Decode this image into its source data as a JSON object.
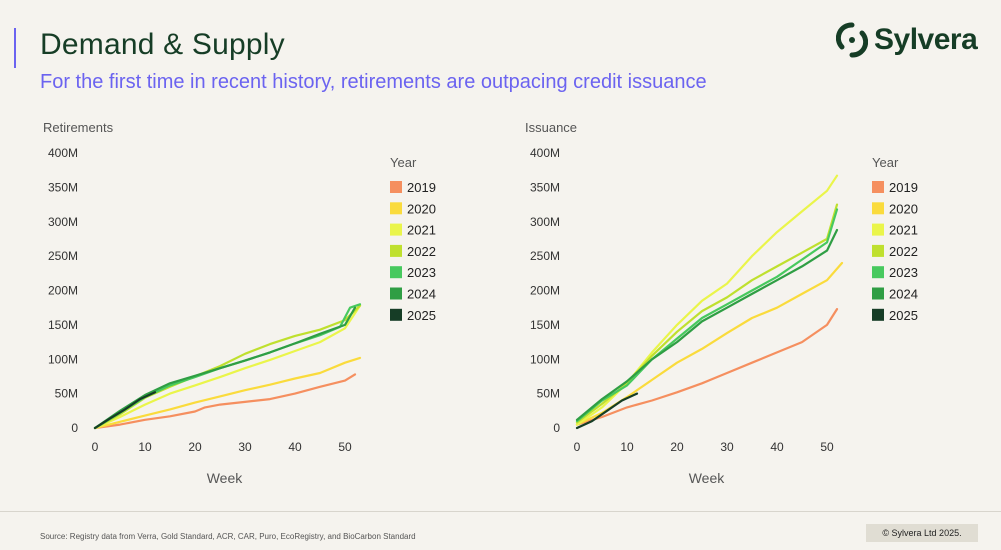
{
  "title": "Demand & Supply",
  "subtitle": "For the first time in recent history, retirements are outpacing credit issuance",
  "brand": {
    "name": "Sylvera",
    "color": "#163d26",
    "accent": "#6b63f0",
    "logo_icon": "sylvera-logo-icon"
  },
  "footer": {
    "source": "Source: Registry data from Verra, Gold Standard, ACR, CAR, Puro, EcoRegistry, and BioCarbon Standard",
    "copyright": "© Sylvera Ltd 2025."
  },
  "chart_data": [
    {
      "type": "line",
      "title": "",
      "ylabel": "Retirements",
      "xlabel": "Week",
      "xlim": [
        0,
        53
      ],
      "ylim": [
        0,
        400
      ],
      "x_ticks": [
        0,
        10,
        20,
        30,
        40,
        50
      ],
      "y_ticks": [
        "0",
        "50M",
        "100M",
        "150M",
        "200M",
        "250M",
        "300M",
        "350M",
        "400M"
      ],
      "y_tick_values": [
        0,
        50,
        100,
        150,
        200,
        250,
        300,
        350,
        400
      ],
      "grid": false,
      "legend": {
        "title": "Year",
        "position": "right"
      },
      "series": [
        {
          "name": "2019",
          "color": "#f58f5f",
          "points": [
            [
              0,
              0
            ],
            [
              5,
              5
            ],
            [
              10,
              12
            ],
            [
              15,
              17
            ],
            [
              20,
              24
            ],
            [
              22,
              30
            ],
            [
              25,
              34
            ],
            [
              30,
              38
            ],
            [
              35,
              42
            ],
            [
              40,
              50
            ],
            [
              45,
              60
            ],
            [
              50,
              69
            ],
            [
              52,
              78
            ]
          ]
        },
        {
          "name": "2020",
          "color": "#fadb3c",
          "points": [
            [
              0,
              0
            ],
            [
              5,
              9
            ],
            [
              10,
              18
            ],
            [
              15,
              27
            ],
            [
              20,
              37
            ],
            [
              25,
              46
            ],
            [
              30,
              55
            ],
            [
              35,
              63
            ],
            [
              40,
              72
            ],
            [
              45,
              80
            ],
            [
              50,
              95
            ],
            [
              53,
              102
            ]
          ]
        },
        {
          "name": "2021",
          "color": "#eaf54a",
          "points": [
            [
              0,
              0
            ],
            [
              5,
              16
            ],
            [
              10,
              34
            ],
            [
              15,
              50
            ],
            [
              20,
              62
            ],
            [
              25,
              74
            ],
            [
              30,
              87
            ],
            [
              35,
              99
            ],
            [
              40,
              112
            ],
            [
              45,
              125
            ],
            [
              50,
              145
            ],
            [
              53,
              178
            ]
          ]
        },
        {
          "name": "2022",
          "color": "#bfe02e",
          "points": [
            [
              0,
              0
            ],
            [
              5,
              20
            ],
            [
              10,
              44
            ],
            [
              15,
              60
            ],
            [
              20,
              75
            ],
            [
              25,
              90
            ],
            [
              30,
              108
            ],
            [
              35,
              122
            ],
            [
              40,
              134
            ],
            [
              45,
              143
            ],
            [
              50,
              157
            ],
            [
              53,
              178
            ]
          ]
        },
        {
          "name": "2023",
          "color": "#47c95e",
          "points": [
            [
              0,
              0
            ],
            [
              5,
              22
            ],
            [
              10,
              45
            ],
            [
              15,
              62
            ],
            [
              20,
              74
            ],
            [
              25,
              87
            ],
            [
              30,
              98
            ],
            [
              35,
              110
            ],
            [
              40,
              123
            ],
            [
              45,
              135
            ],
            [
              49,
              147
            ],
            [
              51,
              175
            ],
            [
              53,
              180
            ]
          ]
        },
        {
          "name": "2024",
          "color": "#2f9e44",
          "points": [
            [
              0,
              0
            ],
            [
              5,
              25
            ],
            [
              10,
              48
            ],
            [
              15,
              65
            ],
            [
              20,
              76
            ],
            [
              25,
              87
            ],
            [
              30,
              98
            ],
            [
              35,
              110
            ],
            [
              40,
              123
            ],
            [
              45,
              137
            ],
            [
              50,
              150
            ],
            [
              52,
              175
            ]
          ]
        },
        {
          "name": "2025",
          "color": "#163d26",
          "points": [
            [
              0,
              0
            ],
            [
              3,
              14
            ],
            [
              6,
              27
            ],
            [
              9,
              42
            ],
            [
              12,
              52
            ]
          ]
        }
      ]
    },
    {
      "type": "line",
      "title": "",
      "ylabel": "Issuance",
      "xlabel": "Week",
      "xlim": [
        0,
        53
      ],
      "ylim": [
        0,
        400
      ],
      "x_ticks": [
        0,
        10,
        20,
        30,
        40,
        50
      ],
      "y_ticks": [
        "0",
        "50M",
        "100M",
        "150M",
        "200M",
        "250M",
        "300M",
        "350M",
        "400M"
      ],
      "y_tick_values": [
        0,
        50,
        100,
        150,
        200,
        250,
        300,
        350,
        400
      ],
      "grid": false,
      "legend": {
        "title": "Year",
        "position": "right"
      },
      "series": [
        {
          "name": "2019",
          "color": "#f58f5f",
          "points": [
            [
              0,
              5
            ],
            [
              5,
              16
            ],
            [
              10,
              30
            ],
            [
              15,
              40
            ],
            [
              20,
              52
            ],
            [
              25,
              65
            ],
            [
              30,
              80
            ],
            [
              35,
              95
            ],
            [
              40,
              110
            ],
            [
              45,
              125
            ],
            [
              50,
              150
            ],
            [
              52,
              173
            ]
          ]
        },
        {
          "name": "2020",
          "color": "#fadb3c",
          "points": [
            [
              0,
              5
            ],
            [
              5,
              22
            ],
            [
              10,
              45
            ],
            [
              15,
              70
            ],
            [
              20,
              95
            ],
            [
              25,
              115
            ],
            [
              30,
              138
            ],
            [
              35,
              160
            ],
            [
              40,
              175
            ],
            [
              45,
              195
            ],
            [
              50,
              215
            ],
            [
              53,
              240
            ]
          ]
        },
        {
          "name": "2021",
          "color": "#eaf54a",
          "points": [
            [
              0,
              5
            ],
            [
              5,
              30
            ],
            [
              10,
              65
            ],
            [
              15,
              110
            ],
            [
              20,
              150
            ],
            [
              25,
              185
            ],
            [
              30,
              210
            ],
            [
              35,
              250
            ],
            [
              40,
              285
            ],
            [
              45,
              315
            ],
            [
              50,
              345
            ],
            [
              52,
              367
            ]
          ]
        },
        {
          "name": "2022",
          "color": "#bfe02e",
          "points": [
            [
              0,
              8
            ],
            [
              5,
              35
            ],
            [
              10,
              65
            ],
            [
              15,
              105
            ],
            [
              20,
              140
            ],
            [
              25,
              170
            ],
            [
              30,
              190
            ],
            [
              35,
              215
            ],
            [
              40,
              235
            ],
            [
              45,
              255
            ],
            [
              50,
              275
            ],
            [
              52,
              325
            ]
          ]
        },
        {
          "name": "2023",
          "color": "#47c95e",
          "points": [
            [
              0,
              10
            ],
            [
              5,
              40
            ],
            [
              10,
              62
            ],
            [
              15,
              100
            ],
            [
              20,
              130
            ],
            [
              25,
              160
            ],
            [
              30,
              180
            ],
            [
              35,
              200
            ],
            [
              40,
              220
            ],
            [
              45,
              245
            ],
            [
              50,
              270
            ],
            [
              52,
              318
            ]
          ]
        },
        {
          "name": "2024",
          "color": "#2f9e44",
          "points": [
            [
              0,
              12
            ],
            [
              5,
              42
            ],
            [
              10,
              68
            ],
            [
              15,
              100
            ],
            [
              20,
              125
            ],
            [
              25,
              155
            ],
            [
              30,
              175
            ],
            [
              35,
              195
            ],
            [
              40,
              215
            ],
            [
              45,
              235
            ],
            [
              50,
              258
            ],
            [
              52,
              288
            ]
          ]
        },
        {
          "name": "2025",
          "color": "#163d26",
          "points": [
            [
              0,
              0
            ],
            [
              3,
              10
            ],
            [
              6,
              25
            ],
            [
              9,
              40
            ],
            [
              12,
              50
            ]
          ]
        }
      ]
    }
  ]
}
